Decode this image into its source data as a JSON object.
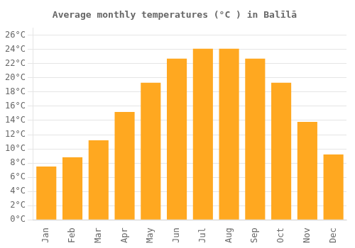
{
  "chart_data": {
    "type": "bar",
    "title": "Average monthly temperatures (°C ) in Balīlā",
    "categories": [
      "Jan",
      "Feb",
      "Mar",
      "Apr",
      "May",
      "Jun",
      "Jul",
      "Aug",
      "Sep",
      "Oct",
      "Nov",
      "Dec"
    ],
    "values": [
      7.5,
      8.8,
      11.2,
      15.2,
      19.3,
      22.7,
      24.1,
      24.1,
      22.7,
      19.3,
      13.8,
      9.2
    ],
    "color": "#FFA820",
    "ylim": [
      0,
      27
    ],
    "yticks": [
      {
        "value": 0,
        "label": "0°C"
      },
      {
        "value": 2,
        "label": "2°C"
      },
      {
        "value": 4,
        "label": "4°C"
      },
      {
        "value": 6,
        "label": "6°C"
      },
      {
        "value": 8,
        "label": "8°C"
      },
      {
        "value": 10,
        "label": "10°C"
      },
      {
        "value": 12,
        "label": "12°C"
      },
      {
        "value": 14,
        "label": "14°C"
      },
      {
        "value": 16,
        "label": "16°C"
      },
      {
        "value": 18,
        "label": "18°C"
      },
      {
        "value": 20,
        "label": "20°C"
      },
      {
        "value": 22,
        "label": "22°C"
      },
      {
        "value": 24,
        "label": "24°C"
      },
      {
        "value": 26,
        "label": "26°C"
      }
    ],
    "grid": "y"
  }
}
